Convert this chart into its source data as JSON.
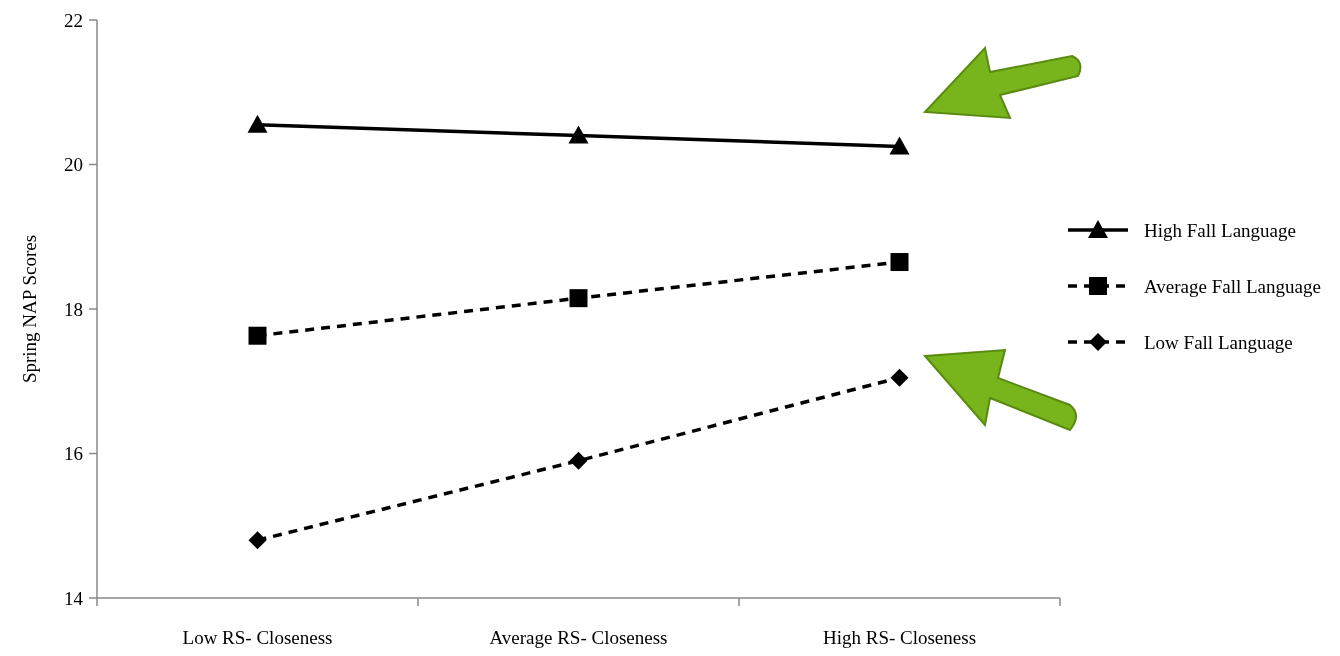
{
  "chart_data": {
    "type": "line",
    "ylabel": "Spring NAP Scores",
    "categories": [
      "Low RS- Closeness",
      "Average RS- Closeness",
      "High RS- Closeness"
    ],
    "ylim": [
      14,
      22
    ],
    "yticks": [
      14,
      16,
      18,
      20,
      22
    ],
    "grid": false,
    "legend": "right",
    "series": [
      {
        "name": "High Fall Language",
        "color": "#000000",
        "values": [
          20.55,
          20.4,
          20.25
        ],
        "marker": "triangle",
        "line_style": "solid"
      },
      {
        "name": "Average Fall Language",
        "color": "#000000",
        "values": [
          17.63,
          18.15,
          18.65
        ],
        "marker": "square",
        "line_style": "dashed"
      },
      {
        "name": "Low Fall Language",
        "color": "#000000",
        "values": [
          14.8,
          15.9,
          17.05
        ],
        "marker": "diamond",
        "line_style": "dashed"
      }
    ]
  }
}
